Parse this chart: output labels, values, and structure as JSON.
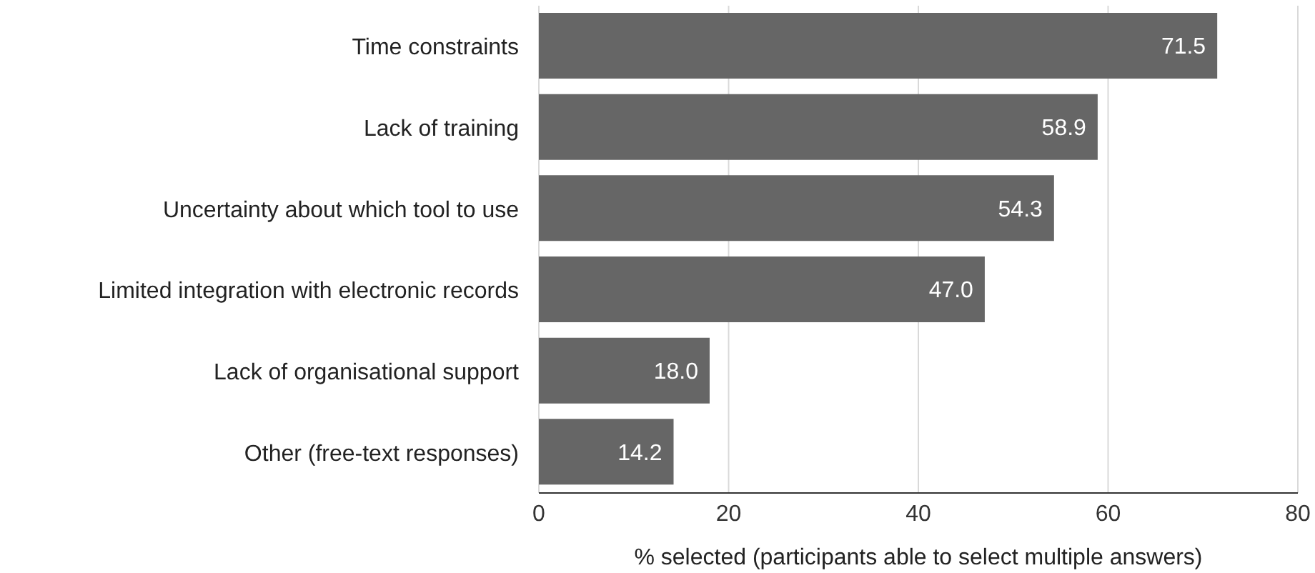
{
  "chart_data": {
    "type": "bar",
    "orientation": "horizontal",
    "xlabel": "% selected (participants able to select multiple answers)",
    "categories": [
      "Time constraints",
      "Lack of training",
      "Uncertainty about which tool to use",
      "Limited integration with electronic records",
      "Lack of organisational support",
      "Other (free-text responses)"
    ],
    "values": [
      71.5,
      58.9,
      54.3,
      47.0,
      18.0,
      14.2
    ],
    "value_labels": [
      "71.5",
      "58.9",
      "54.3",
      "47.0",
      "18.0",
      "14.2"
    ],
    "color": "#666666",
    "xlim": [
      0,
      80
    ],
    "xticks": [
      0,
      20,
      40,
      60,
      80
    ],
    "grid": "x"
  }
}
